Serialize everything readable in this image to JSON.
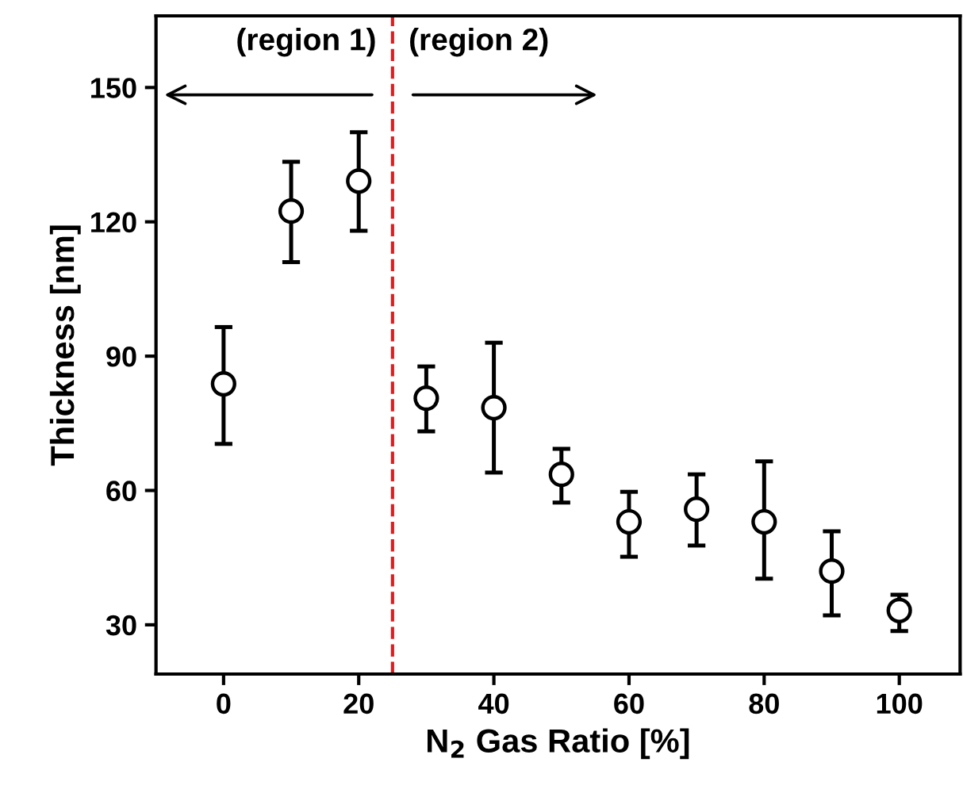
{
  "chart_data": {
    "type": "scatter",
    "xlabel": "N$_{2}$ Gas Ratio [%]",
    "ylabel": "Thickness [nm]",
    "x": [
      0,
      10,
      20,
      30,
      40,
      50,
      60,
      70,
      80,
      90,
      100
    ],
    "values": [
      83.8,
      122.4,
      129.1,
      80.6,
      78.5,
      63.6,
      53,
      55.8,
      53,
      42,
      33.2
    ],
    "errors": [
      [
        70.4,
        96.5
      ],
      [
        111,
        133.4
      ],
      [
        118,
        140
      ],
      [
        73.2,
        87.7
      ],
      [
        64,
        93
      ],
      [
        57.3,
        69.3
      ],
      [
        45.2,
        59.7
      ],
      [
        47.7,
        63.6
      ],
      [
        40.3,
        66.5
      ],
      [
        32.1,
        50.9
      ],
      [
        28.6,
        36.7
      ]
    ],
    "color": "#000000",
    "marker": "circle",
    "xlim": [
      -10,
      109
    ],
    "ylim": [
      19,
      166
    ],
    "xticks": [
      0,
      20,
      40,
      60,
      80,
      100
    ],
    "yticks": [
      30,
      60,
      90,
      120,
      150
    ],
    "ref_lines": [
      {
        "axis": "x",
        "value": 25,
        "color": "#e41a1c",
        "line_style": "dashed"
      }
    ],
    "annotations": [
      "(region 1)",
      "(region 2)"
    ],
    "grid": false
  }
}
